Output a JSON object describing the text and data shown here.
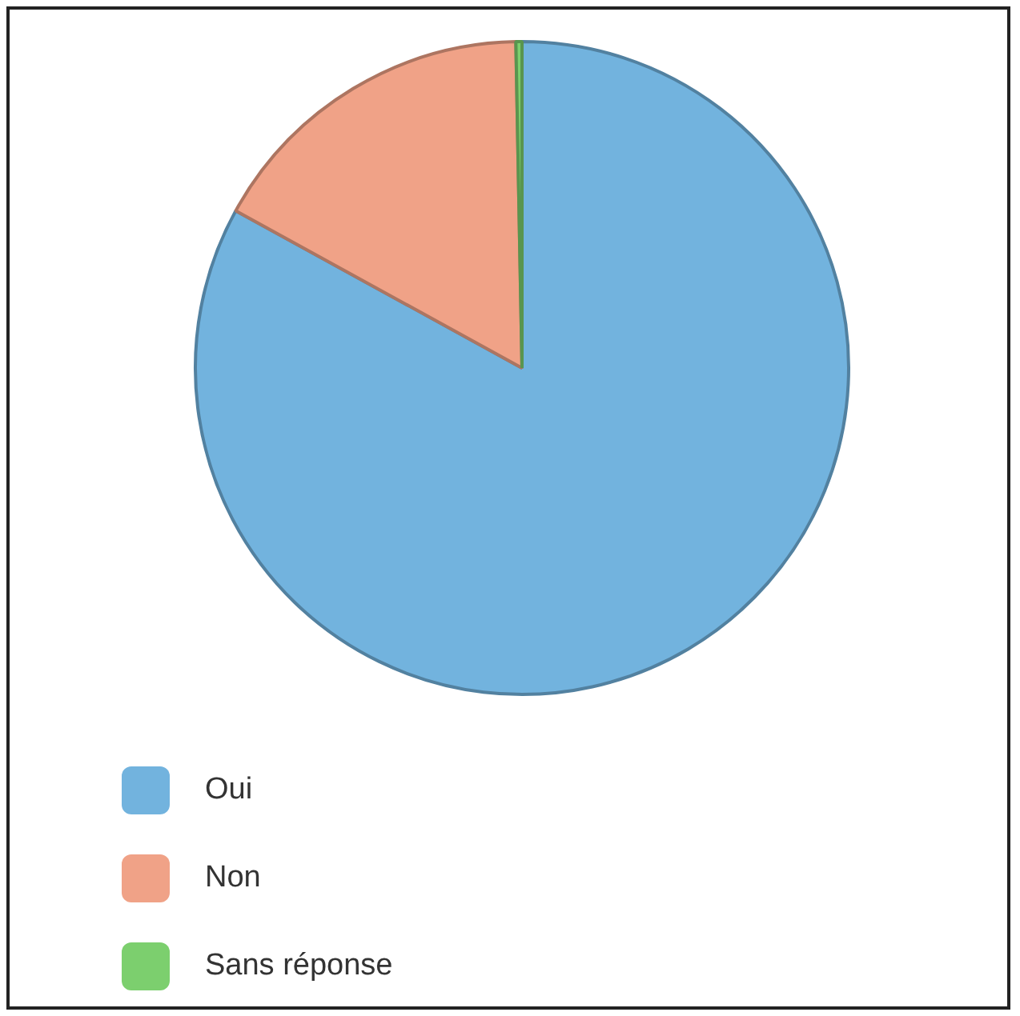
{
  "chart_data": {
    "type": "pie",
    "categories": [
      "Oui",
      "Non",
      "Sans réponse"
    ],
    "values": [
      83,
      16.7,
      0.3
    ],
    "colors": [
      "#72b3de",
      "#f0a287",
      "#7ccf6e"
    ],
    "legend": "bottom left"
  }
}
